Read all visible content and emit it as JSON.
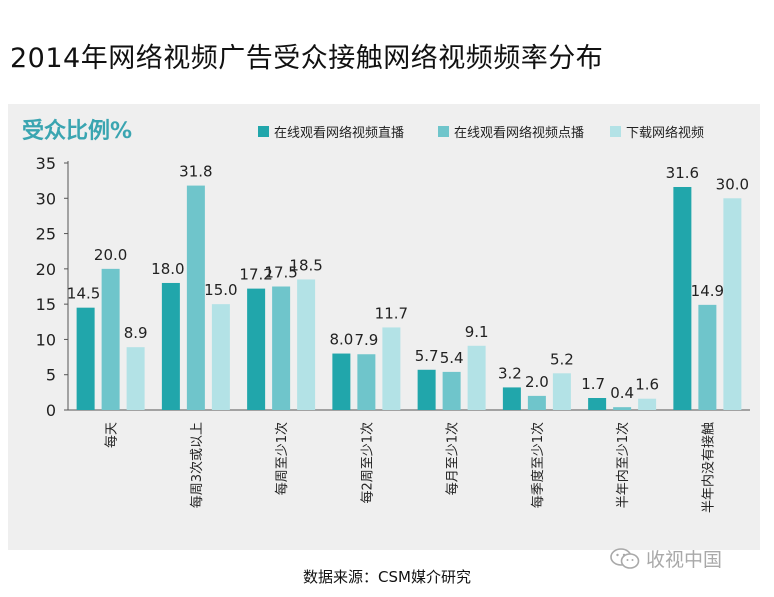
{
  "page": {
    "title": "2014年网络视频广告受众接触网络视频频率分布",
    "source": "数据来源：CSM媒介研究",
    "watermark": "收视中国"
  },
  "colors": {
    "series": [
      "#21a6ab",
      "#6fc5cb",
      "#b3e2e6"
    ],
    "axis_label": "#3aa5b1",
    "panel_bg": "#efefef"
  },
  "chart_data": {
    "type": "bar",
    "title": "",
    "ylabel": "受众比例%",
    "xlabel": "",
    "ylim": [
      0,
      35
    ],
    "yticks": [
      0,
      5,
      10,
      15,
      20,
      25,
      30,
      35
    ],
    "grid": false,
    "legend_position": "top-right",
    "categories": [
      "每天",
      "每周3次或以上",
      "每周至少1次",
      "每2周至少1次",
      "每月至少1次",
      "每季度至少1次",
      "半年内至少1次",
      "半年内没有接触"
    ],
    "series": [
      {
        "name": "在线观看网络视频直播",
        "values": [
          14.5,
          18.0,
          17.2,
          8.0,
          5.7,
          3.2,
          1.7,
          31.6
        ]
      },
      {
        "name": "在线观看网络视频点播",
        "values": [
          20.0,
          31.8,
          17.5,
          7.9,
          5.4,
          2.0,
          0.4,
          14.9
        ]
      },
      {
        "name": "下载网络视频",
        "values": [
          8.9,
          15.0,
          18.5,
          11.7,
          9.1,
          5.2,
          1.6,
          30.0
        ]
      }
    ]
  }
}
